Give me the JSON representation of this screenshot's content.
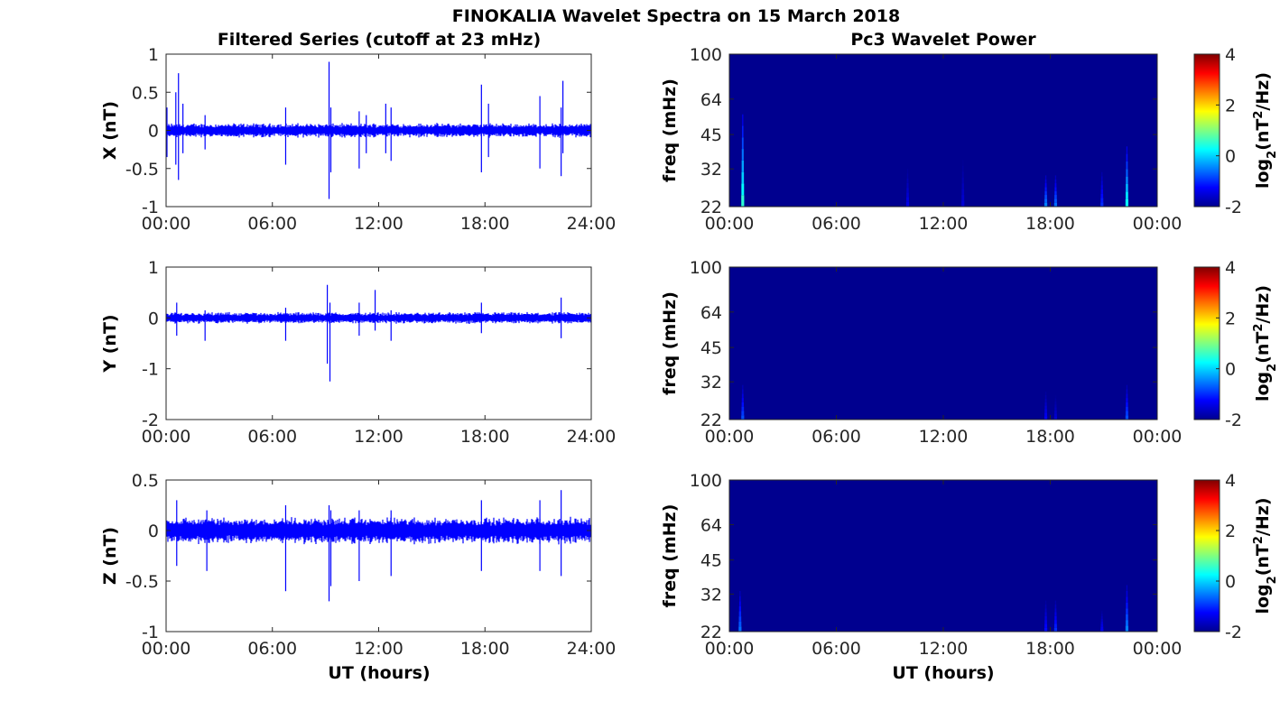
{
  "figure": {
    "title": "FINOKALIA Wavelet Spectra on 15 March 2018",
    "left_title": "Filtered Series (cutoff at 23 mHz)",
    "right_title": "Pc3 Wavelet Power",
    "xlabel": "UT (hours)"
  },
  "colors": {
    "series": "#0000ff",
    "background": "#00008f",
    "axes": "#262626"
  },
  "chart_data": [
    {
      "type": "line",
      "component": "X",
      "ylabel": "X (nT)",
      "ylim": [
        -1,
        1
      ],
      "yticks": [
        -1,
        -0.5,
        0,
        0.5,
        1
      ],
      "ytick_labels": [
        "-1",
        "-0.5",
        "0",
        "0.5",
        "1"
      ],
      "xlim": [
        0,
        24
      ],
      "xticks": [
        0,
        6,
        12,
        18,
        24
      ],
      "xtick_labels": [
        "00:00",
        "06:00",
        "12:00",
        "18:00",
        "24:00"
      ],
      "noise_envelope": 0.1,
      "spikes": [
        {
          "t": 0.05,
          "min": -0.35,
          "max": 0.3
        },
        {
          "t": 0.55,
          "min": -0.45,
          "max": 0.5
        },
        {
          "t": 0.7,
          "min": -0.65,
          "max": 0.75
        },
        {
          "t": 0.95,
          "min": -0.3,
          "max": 0.35
        },
        {
          "t": 2.2,
          "min": -0.25,
          "max": 0.2
        },
        {
          "t": 6.75,
          "min": -0.45,
          "max": 0.3
        },
        {
          "t": 9.2,
          "min": -0.9,
          "max": 0.9
        },
        {
          "t": 9.3,
          "min": -0.55,
          "max": 0.3
        },
        {
          "t": 10.9,
          "min": -0.5,
          "max": 0.25
        },
        {
          "t": 11.3,
          "min": -0.3,
          "max": 0.2
        },
        {
          "t": 12.4,
          "min": -0.3,
          "max": 0.35
        },
        {
          "t": 12.7,
          "min": -0.4,
          "max": 0.3
        },
        {
          "t": 17.8,
          "min": -0.55,
          "max": 0.6
        },
        {
          "t": 18.2,
          "min": -0.35,
          "max": 0.35
        },
        {
          "t": 21.1,
          "min": -0.5,
          "max": 0.45
        },
        {
          "t": 22.3,
          "min": -0.6,
          "max": 0.3
        },
        {
          "t": 22.4,
          "min": -0.3,
          "max": 0.65
        }
      ]
    },
    {
      "type": "line",
      "component": "Y",
      "ylabel": "Y (nT)",
      "ylim": [
        -2,
        1
      ],
      "yticks": [
        -2,
        -1,
        0,
        1
      ],
      "ytick_labels": [
        "-2",
        "-1",
        "0",
        "1"
      ],
      "xlim": [
        0,
        24
      ],
      "xticks": [
        0,
        6,
        12,
        18,
        24
      ],
      "xtick_labels": [
        "00:00",
        "06:00",
        "12:00",
        "18:00",
        "24:00"
      ],
      "noise_envelope": 0.12,
      "spikes": [
        {
          "t": 0.6,
          "min": -0.35,
          "max": 0.3
        },
        {
          "t": 2.2,
          "min": -0.45,
          "max": 0.15
        },
        {
          "t": 6.75,
          "min": -0.45,
          "max": 0.2
        },
        {
          "t": 9.1,
          "min": -0.9,
          "max": 0.65
        },
        {
          "t": 9.25,
          "min": -1.25,
          "max": 0.3
        },
        {
          "t": 10.9,
          "min": -0.35,
          "max": 0.3
        },
        {
          "t": 11.8,
          "min": -0.25,
          "max": 0.55
        },
        {
          "t": 12.7,
          "min": -0.45,
          "max": 0.15
        },
        {
          "t": 17.8,
          "min": -0.3,
          "max": 0.3
        },
        {
          "t": 22.3,
          "min": -0.4,
          "max": 0.4
        }
      ]
    },
    {
      "type": "line",
      "component": "Z",
      "ylabel": "Z (nT)",
      "ylim": [
        -1,
        0.5
      ],
      "yticks": [
        -1,
        -0.5,
        0,
        0.5
      ],
      "ytick_labels": [
        "-1",
        "-0.5",
        "0",
        "0.5"
      ],
      "xlim": [
        0,
        24
      ],
      "xticks": [
        0,
        6,
        12,
        18,
        24
      ],
      "xtick_labels": [
        "00:00",
        "06:00",
        "12:00",
        "18:00",
        "24:00"
      ],
      "noise_envelope": 0.14,
      "spikes": [
        {
          "t": 0.6,
          "min": -0.35,
          "max": 0.3
        },
        {
          "t": 2.3,
          "min": -0.4,
          "max": 0.2
        },
        {
          "t": 6.75,
          "min": -0.6,
          "max": 0.25
        },
        {
          "t": 9.2,
          "min": -0.7,
          "max": 0.25
        },
        {
          "t": 9.3,
          "min": -0.55,
          "max": 0.2
        },
        {
          "t": 10.9,
          "min": -0.5,
          "max": 0.2
        },
        {
          "t": 12.7,
          "min": -0.45,
          "max": 0.2
        },
        {
          "t": 17.8,
          "min": -0.4,
          "max": 0.3
        },
        {
          "t": 21.1,
          "min": -0.4,
          "max": 0.3
        },
        {
          "t": 22.3,
          "min": -0.45,
          "max": 0.4
        }
      ]
    },
    {
      "type": "heatmap",
      "component": "X",
      "ylabel": "freq (mHz)",
      "ylim": [
        22,
        100
      ],
      "yscale": "log",
      "yticks": [
        22,
        32,
        45,
        64,
        100
      ],
      "ytick_labels": [
        "22",
        "32",
        "45",
        "64",
        "100"
      ],
      "xlim": [
        0,
        24
      ],
      "xticks": [
        0,
        6,
        12,
        18,
        24
      ],
      "xtick_labels": [
        "00:00",
        "06:00",
        "12:00",
        "18:00",
        "00:00"
      ],
      "colorbar": {
        "label": "log2(nT^2/Hz)",
        "label_main": "log",
        "label_sub": "2",
        "label_rest": "(nT",
        "label_sup": "2",
        "label_tail": "/Hz)",
        "range": [
          -2,
          4
        ],
        "ticks": [
          -2,
          0,
          2,
          4
        ],
        "tick_labels": [
          "-2",
          "0",
          "2",
          "4"
        ]
      },
      "background_power": -2,
      "events": [
        {
          "t": 0.75,
          "fmax": 55,
          "power": 0.5
        },
        {
          "t": 10.0,
          "fmax": 32,
          "power": -1.4
        },
        {
          "t": 13.1,
          "fmax": 35,
          "power": -1.5
        },
        {
          "t": 17.75,
          "fmax": 30,
          "power": -0.5
        },
        {
          "t": 18.3,
          "fmax": 30,
          "power": -0.6
        },
        {
          "t": 20.9,
          "fmax": 31,
          "power": -1.0
        },
        {
          "t": 22.3,
          "fmax": 40,
          "power": 0.3
        }
      ]
    },
    {
      "type": "heatmap",
      "component": "Y",
      "ylabel": "freq (mHz)",
      "ylim": [
        22,
        100
      ],
      "yscale": "log",
      "yticks": [
        22,
        32,
        45,
        64,
        100
      ],
      "ytick_labels": [
        "22",
        "32",
        "45",
        "64",
        "100"
      ],
      "xlim": [
        0,
        24
      ],
      "xticks": [
        0,
        6,
        12,
        18,
        24
      ],
      "xtick_labels": [
        "00:00",
        "06:00",
        "12:00",
        "18:00",
        "00:00"
      ],
      "colorbar": {
        "label": "log2(nT^2/Hz)",
        "label_main": "log",
        "label_sub": "2",
        "label_rest": "(nT",
        "label_sup": "2",
        "label_tail": "/Hz)",
        "range": [
          -2,
          4
        ],
        "ticks": [
          -2,
          0,
          2,
          4
        ],
        "tick_labels": [
          "-2",
          "0",
          "2",
          "4"
        ]
      },
      "background_power": -2,
      "events": [
        {
          "t": 0.75,
          "fmax": 31,
          "power": -0.8
        },
        {
          "t": 17.75,
          "fmax": 29,
          "power": -1.3
        },
        {
          "t": 18.3,
          "fmax": 28,
          "power": -1.5
        },
        {
          "t": 22.3,
          "fmax": 31,
          "power": -0.8
        }
      ]
    },
    {
      "type": "heatmap",
      "component": "Z",
      "ylabel": "freq (mHz)",
      "ylim": [
        22,
        100
      ],
      "yscale": "log",
      "yticks": [
        22,
        32,
        45,
        64,
        100
      ],
      "ytick_labels": [
        "22",
        "32",
        "45",
        "64",
        "100"
      ],
      "xlim": [
        0,
        24
      ],
      "xticks": [
        0,
        6,
        12,
        18,
        24
      ],
      "xtick_labels": [
        "00:00",
        "06:00",
        "12:00",
        "18:00",
        "00:00"
      ],
      "xlabel": "UT (hours)",
      "colorbar": {
        "label": "log2(nT^2/Hz)",
        "label_main": "log",
        "label_sub": "2",
        "label_rest": "(nT",
        "label_sup": "2",
        "label_tail": "/Hz)",
        "range": [
          -2,
          4
        ],
        "ticks": [
          -2,
          0,
          2,
          4
        ],
        "tick_labels": [
          "-2",
          "0",
          "2",
          "4"
        ]
      },
      "background_power": -2,
      "events": [
        {
          "t": 0.6,
          "fmax": 33,
          "power": -0.6
        },
        {
          "t": 17.75,
          "fmax": 30,
          "power": -1.2
        },
        {
          "t": 18.3,
          "fmax": 30,
          "power": -1.0
        },
        {
          "t": 20.9,
          "fmax": 27,
          "power": -1.3
        },
        {
          "t": 22.3,
          "fmax": 35,
          "power": -0.5
        }
      ]
    }
  ]
}
